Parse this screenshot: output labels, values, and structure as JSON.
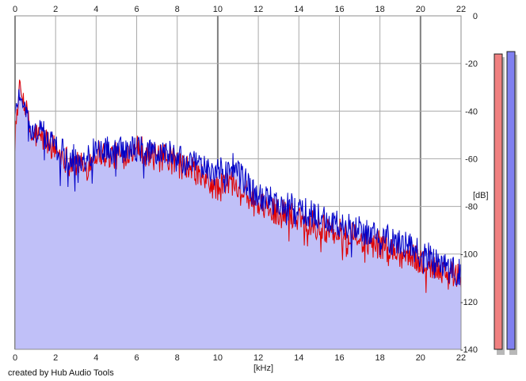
{
  "credit": "created by Hub Audio Tools",
  "colors": {
    "background": "#ffffff",
    "grid": "#a9a9a9",
    "grid_major": "#7f7f7f",
    "fill": "#c0c0f8",
    "left_channel": "#e00000",
    "right_channel": "#0000c8",
    "meter_left": "#f08080",
    "meter_right": "#8080f0"
  },
  "chart_data": {
    "type": "line",
    "title": "",
    "xlabel": "[kHz]",
    "ylabel": "[dB]",
    "xlim": [
      0,
      22
    ],
    "ylim": [
      -140,
      0
    ],
    "xticks": [
      0,
      2,
      4,
      6,
      8,
      10,
      12,
      14,
      16,
      18,
      20,
      22
    ],
    "yticks": [
      0,
      -20,
      -40,
      -60,
      -80,
      -100,
      -120,
      -140
    ],
    "xtick_labels": [
      "0",
      "2",
      "4",
      "6",
      "8",
      "10",
      "12",
      "14",
      "16",
      "18",
      "20",
      "22"
    ],
    "ytick_labels": [
      "0",
      "-20",
      "-40",
      "-60",
      "-80",
      "-100",
      "-120",
      "-140"
    ],
    "grid": true,
    "x": [
      0,
      0.2,
      0.4,
      0.6,
      0.8,
      1,
      1.5,
      2,
      2.5,
      3,
      3.5,
      4,
      4.5,
      5,
      5.5,
      6,
      6.5,
      7,
      7.5,
      8,
      8.5,
      9,
      9.5,
      10,
      10.5,
      11,
      11.5,
      12,
      12.5,
      13,
      13.5,
      14,
      14.5,
      15,
      15.5,
      16,
      16.5,
      17,
      17.5,
      18,
      18.5,
      19,
      19.5,
      20,
      20.5,
      21,
      21.5,
      22
    ],
    "series": [
      {
        "channel": "left",
        "values": [
          -48,
          -30,
          -35,
          -40,
          -52,
          -50,
          -52,
          -56,
          -60,
          -62,
          -64,
          -57,
          -58,
          -59,
          -57,
          -54,
          -58,
          -60,
          -60,
          -62,
          -64,
          -66,
          -70,
          -73,
          -70,
          -70,
          -76,
          -80,
          -81,
          -82,
          -84,
          -84,
          -86,
          -88,
          -90,
          -91,
          -92,
          -94,
          -96,
          -96,
          -98,
          -100,
          -101,
          -103,
          -104,
          -106,
          -108,
          -110
        ]
      },
      {
        "channel": "right",
        "values": [
          -42,
          -32,
          -36,
          -42,
          -50,
          -48,
          -50,
          -55,
          -58,
          -60,
          -60,
          -56,
          -56,
          -57,
          -56,
          -55,
          -57,
          -58,
          -57,
          -60,
          -62,
          -63,
          -64,
          -66,
          -63,
          -64,
          -72,
          -76,
          -77,
          -79,
          -80,
          -81,
          -83,
          -84,
          -86,
          -88,
          -88,
          -90,
          -91,
          -92,
          -94,
          -96,
          -97,
          -100,
          -101,
          -103,
          -106,
          -108
        ]
      }
    ],
    "fill_series": "max",
    "meters": [
      {
        "channel": "left",
        "level_db": -16
      },
      {
        "channel": "right",
        "level_db": -15
      }
    ]
  }
}
